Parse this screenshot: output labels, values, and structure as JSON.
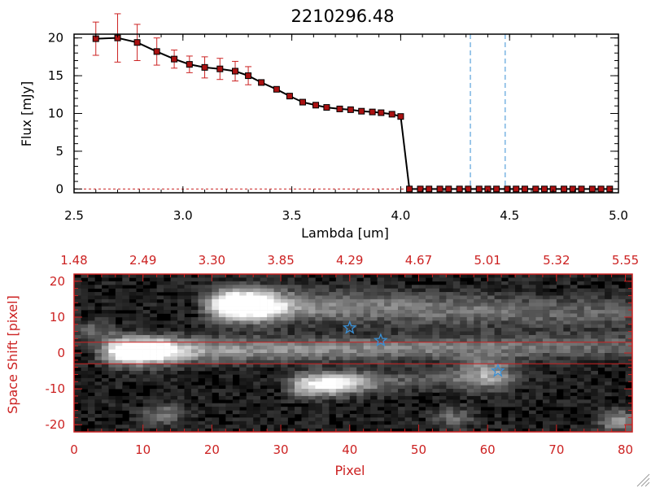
{
  "chart_data": [
    {
      "type": "line",
      "title": "2210296.48",
      "xlabel": "Lambda [um]",
      "ylabel": "Flux [mJy]",
      "xlim": [
        2.5,
        5.0
      ],
      "ylim": [
        -0.5,
        20.5
      ],
      "x_ticks": [
        "2.5",
        "3.0",
        "3.5",
        "4.0",
        "4.5",
        "5.0"
      ],
      "y_ticks": [
        "0",
        "5",
        "10",
        "15",
        "20"
      ],
      "series": [
        {
          "color": "#000000",
          "marker_color": "#aa1111",
          "x": [
            2.6,
            2.7,
            2.79,
            2.88,
            2.96,
            3.03,
            3.1,
            3.17,
            3.24,
            3.3,
            3.36,
            3.43,
            3.49,
            3.55,
            3.61,
            3.66,
            3.72,
            3.77,
            3.82,
            3.87,
            3.91,
            3.96,
            4.0,
            4.04,
            4.09,
            4.13,
            4.18,
            4.22,
            4.27,
            4.31,
            4.36,
            4.4,
            4.44,
            4.49,
            4.53,
            4.57,
            4.62,
            4.66,
            4.7,
            4.75,
            4.79,
            4.83,
            4.88,
            4.92,
            4.96
          ],
          "y": [
            19.9,
            20.0,
            19.4,
            18.2,
            17.2,
            16.5,
            16.1,
            15.9,
            15.6,
            15.0,
            14.1,
            13.2,
            12.3,
            11.5,
            11.1,
            10.8,
            10.6,
            10.5,
            10.3,
            10.2,
            10.1,
            9.9,
            9.6,
            0,
            0,
            0,
            0,
            0,
            0,
            0,
            0,
            0,
            0,
            0,
            0,
            0,
            0,
            0,
            0,
            0,
            0,
            0,
            0,
            0,
            0
          ],
          "yerr": [
            2.2,
            3.2,
            2.4,
            1.8,
            1.2,
            1.1,
            1.4,
            1.4,
            1.3,
            1.2,
            0,
            0,
            0,
            0,
            0,
            0,
            0,
            0,
            0,
            0,
            0,
            0,
            0,
            0,
            0,
            0,
            0,
            0,
            0,
            0,
            0,
            0,
            0,
            0,
            0,
            0,
            0,
            0,
            0,
            0,
            0,
            0,
            0,
            0,
            0
          ]
        }
      ],
      "vlines": [
        {
          "x": 4.32,
          "color": "#3a8fd4",
          "style": "dashed"
        },
        {
          "x": 4.48,
          "color": "#3a8fd4",
          "style": "dashed"
        }
      ],
      "zero_line": {
        "y": 0,
        "color": "#cc2222",
        "style": "dashed"
      },
      "grid": false
    },
    {
      "type": "heatmap",
      "xlabel": "Pixel",
      "ylabel": "Space Shift [pixel]",
      "xlim": [
        0,
        81
      ],
      "ylim": [
        -22,
        22
      ],
      "x_ticks": [
        "0",
        "10",
        "20",
        "30",
        "40",
        "50",
        "60",
        "70",
        "80"
      ],
      "y_ticks": [
        "-20",
        "-10",
        "0",
        "10",
        "20"
      ],
      "top_ticks": [
        "1.48",
        "2.49",
        "3.30",
        "3.85",
        "4.29",
        "4.67",
        "5.01",
        "5.32",
        "5.55"
      ],
      "axis_color": "#cc2222",
      "colormap": "grayscale",
      "hlines": [
        {
          "y": 3,
          "color": "#cc2222"
        },
        {
          "y": -3,
          "color": "#cc2222"
        }
      ],
      "markers": [
        {
          "x": 40,
          "y": 7,
          "symbol": "star",
          "color": "#3a8fd4"
        },
        {
          "x": 44.5,
          "y": 3.5,
          "symbol": "star",
          "color": "#3a8fd4"
        },
        {
          "x": 61.5,
          "y": -5,
          "symbol": "star",
          "color": "#3a8fd4"
        }
      ],
      "features": [
        {
          "kind": "trace",
          "x0": 6,
          "x1": 82,
          "y0": 0.5,
          "y1": 2,
          "width": 3.4,
          "peak": 0.95,
          "tail": 0.55
        },
        {
          "kind": "trace",
          "x0": 21,
          "x1": 82,
          "y0": 13.5,
          "y1": 11,
          "width": 4.2,
          "peak": 0.98,
          "tail": 0.5
        },
        {
          "kind": "trace",
          "x0": 33,
          "x1": 58,
          "y0": -9,
          "y1": -7,
          "width": 3,
          "peak": 0.7,
          "tail": 0.35
        },
        {
          "kind": "blob",
          "x": 60,
          "y": -6,
          "r": 4,
          "amp": 0.6
        },
        {
          "kind": "blob",
          "x": 79,
          "y": -19,
          "r": 3,
          "amp": 0.5
        },
        {
          "kind": "blob",
          "x": 13,
          "y": -17,
          "r": 3,
          "amp": 0.35
        },
        {
          "kind": "blob",
          "x": 55,
          "y": -18,
          "r": 3,
          "amp": 0.3
        },
        {
          "kind": "blob",
          "x": 3,
          "y": 6,
          "r": 3,
          "amp": 0.3
        }
      ]
    }
  ]
}
